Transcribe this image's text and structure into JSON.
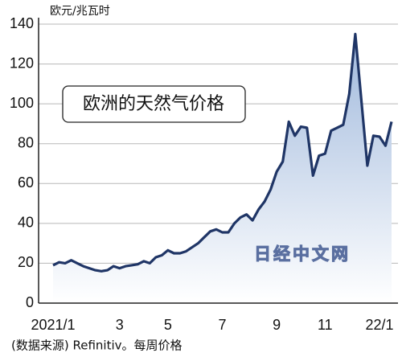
{
  "chart_data": {
    "type": "area_line",
    "title": "欧洲的天然气价格",
    "y_axis_label": "欧元/兆瓦时",
    "watermark": "日经中文网",
    "source": "(数据来源) Refinitiv。每周价格",
    "color": "#1f3566",
    "grid": true,
    "ylim": [
      0,
      140
    ],
    "yticks": [
      0,
      20,
      40,
      60,
      80,
      100,
      120,
      140
    ],
    "categories": [
      "2021/1",
      null,
      null,
      null,
      null,
      null,
      null,
      null,
      null,
      null,
      null,
      "3",
      null,
      null,
      null,
      null,
      null,
      null,
      null,
      "5",
      null,
      null,
      null,
      null,
      null,
      null,
      null,
      null,
      "7",
      null,
      null,
      null,
      null,
      null,
      null,
      null,
      null,
      "9",
      null,
      null,
      null,
      null,
      null,
      null,
      null,
      "11",
      null,
      null,
      null,
      null,
      null,
      null,
      null,
      null,
      "22/1",
      null,
      null
    ],
    "values": [
      19,
      20.5,
      20,
      21.5,
      20,
      18.5,
      17.5,
      16.5,
      16,
      16.5,
      18.5,
      17.5,
      18.5,
      19,
      19.5,
      21,
      20,
      23,
      24,
      26.5,
      25,
      25,
      26,
      28,
      30,
      33,
      36,
      37,
      35.5,
      35.5,
      40,
      43,
      44.5,
      41.5,
      47,
      51,
      57,
      66,
      71,
      91,
      84,
      88.5,
      88,
      64,
      74,
      75,
      86.5,
      88,
      89.5,
      105,
      135,
      102,
      69,
      84,
      83.5,
      79,
      91
    ]
  }
}
